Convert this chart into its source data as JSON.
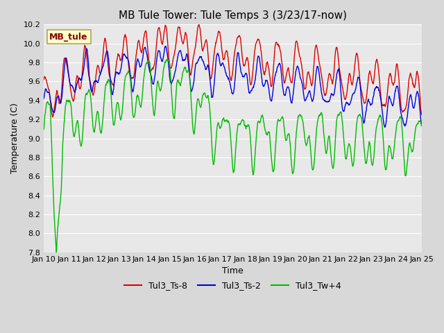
{
  "title": "MB Tule Tower: Tule Temps 3 (3/23/17-now)",
  "xlabel": "Time",
  "ylabel": "Temperature (C)",
  "ylim": [
    7.8,
    10.2
  ],
  "xlim": [
    0,
    15
  ],
  "xtick_labels": [
    "Jan 10",
    "Jan 11",
    "Jan 12",
    "Jan 13",
    "Jan 14",
    "Jan 15",
    "Jan 16",
    "Jan 17",
    "Jan 18",
    "Jan 19",
    "Jan 20",
    "Jan 21",
    "Jan 22",
    "Jan 23",
    "Jan 24",
    "Jan 25"
  ],
  "ytick_values": [
    7.8,
    8.0,
    8.2,
    8.4,
    8.6,
    8.8,
    9.0,
    9.2,
    9.4,
    9.6,
    9.8,
    10.0,
    10.2
  ],
  "line_colors": [
    "#dd0000",
    "#0000dd",
    "#00bb00"
  ],
  "line_labels": [
    "Tul3_Ts-8",
    "Tul3_Ts-2",
    "Tul3_Tw+4"
  ],
  "legend_box_facecolor": "#ffffcc",
  "legend_box_edgecolor": "#aaa855",
  "legend_box_text": "MB_tule",
  "legend_box_text_color": "#880000",
  "fig_facecolor": "#d8d8d8",
  "plot_facecolor": "#e8e8e8",
  "grid_color": "#ffffff",
  "title_fontsize": 11,
  "axis_label_fontsize": 9,
  "tick_fontsize": 8,
  "line_width": 1.0
}
